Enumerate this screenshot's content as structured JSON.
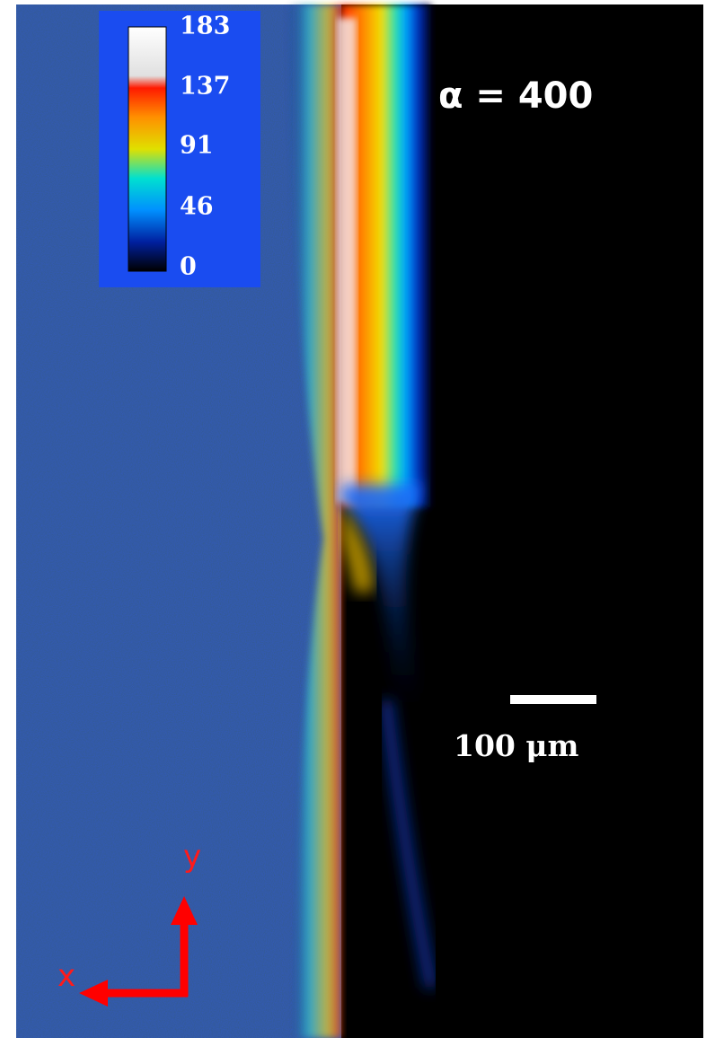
{
  "colorbar": {
    "ticks": [
      "183",
      "137",
      "91",
      "46",
      "0"
    ]
  },
  "label": "α = 400",
  "scale_bar": {
    "label": "100 μm"
  },
  "axes": {
    "y": "y",
    "x": "x"
  }
}
